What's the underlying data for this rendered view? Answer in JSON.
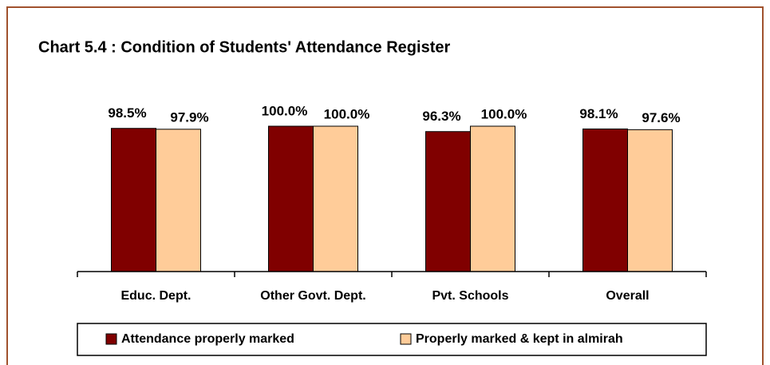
{
  "chart_data": {
    "type": "bar",
    "title": "Chart 5.4 : Condition of Students' Attendance Register",
    "categories": [
      "Educ. Dept.",
      "Other Govt. Dept.",
      "Pvt. Schools",
      "Overall"
    ],
    "series": [
      {
        "name": "Attendance properly marked",
        "color": "#800000",
        "values": [
          98.5,
          100.0,
          96.3,
          98.1
        ],
        "value_labels": [
          "98.5%",
          "100.0%",
          "96.3%",
          "98.1%"
        ]
      },
      {
        "name": "Properly marked & kept in almirah",
        "color": "#ffcc99",
        "values": [
          97.9,
          100.0,
          100.0,
          97.6
        ],
        "value_labels": [
          "97.9%",
          "100.0%",
          "100.0%",
          "97.6%"
        ]
      }
    ],
    "legend": "bottom"
  }
}
